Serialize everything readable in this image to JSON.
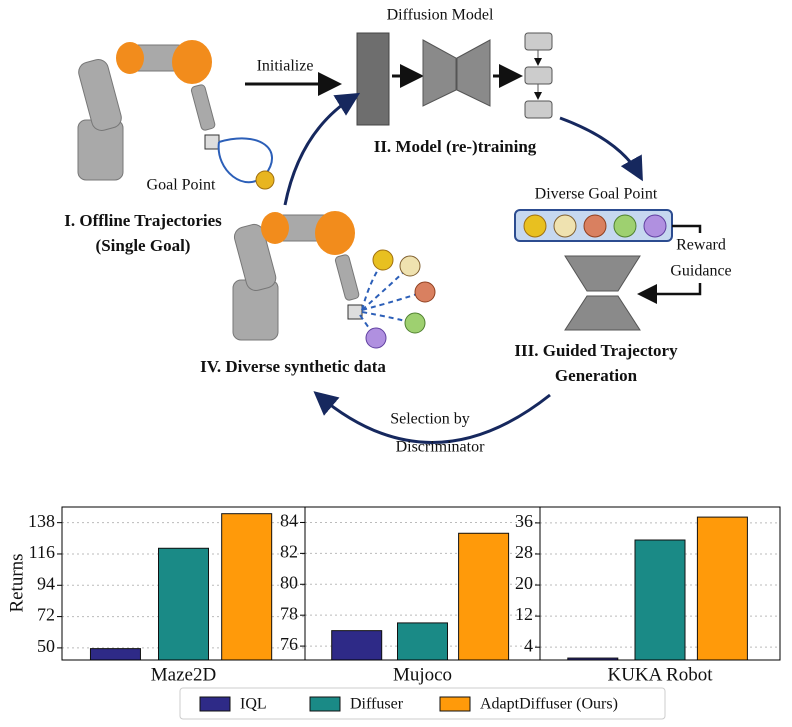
{
  "diagram": {
    "diffusion_model": "Diffusion Model",
    "initialize": "Initialize",
    "stage2": "II. Model (re-)training",
    "goal_point": "Goal Point",
    "stage1_line1": "I. Offline Trajectories",
    "stage1_line2": "(Single Goal)",
    "diverse_goal_point": "Diverse Goal Point",
    "reward": "Reward",
    "guidance": "Guidance",
    "stage3_line1": "III. Guided Trajectory",
    "stage3_line2": "Generation",
    "stage4": "IV. Diverse synthetic data",
    "selection_line1": "Selection by",
    "selection_line2": "Discriminator"
  },
  "legend": {
    "items": [
      {
        "name": "IQL",
        "color": "#2e2a87"
      },
      {
        "name": "Diffuser",
        "color": "#1a8a86"
      },
      {
        "name": "AdaptDiffuser (Ours)",
        "color": "#ff9a0a"
      }
    ]
  },
  "ylabel": "Returns",
  "chart_data": [
    {
      "type": "bar",
      "xlabel": "Maze2D",
      "values": [
        49.5,
        120,
        144.3
      ],
      "ylim": [
        41.5,
        149
      ],
      "yticks": [
        50,
        72,
        94,
        116,
        138
      ],
      "grid": true
    },
    {
      "type": "bar",
      "xlabel": "Mujoco",
      "values": [
        77.0,
        77.5,
        83.3
      ],
      "ylim": [
        75.1,
        85
      ],
      "yticks": [
        76,
        78,
        80,
        82,
        84
      ],
      "grid": true
    },
    {
      "type": "bar",
      "xlabel": "KUKA Robot",
      "values": [
        1.2,
        31.6,
        37.5
      ],
      "ylim": [
        0.7,
        40.1
      ],
      "yticks": [
        4,
        12,
        20,
        28,
        36
      ],
      "grid": true
    }
  ]
}
